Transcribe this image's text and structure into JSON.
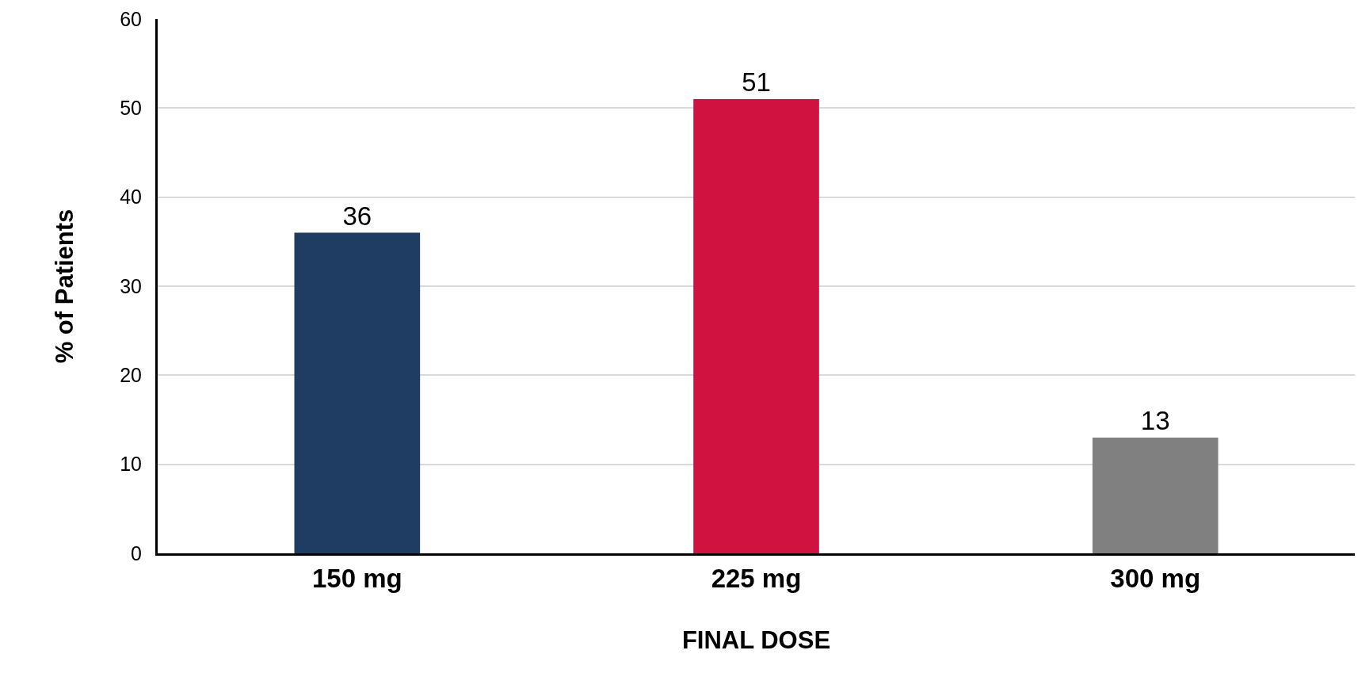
{
  "chart_data": {
    "type": "bar",
    "xlabel": "FINAL DOSE",
    "ylabel": "% of Patients",
    "categories": [
      "150 mg",
      "225 mg",
      "300 mg"
    ],
    "values": [
      36,
      51,
      13
    ],
    "colors": [
      "#1f3c62",
      "#d01240",
      "#808080"
    ],
    "ylim": [
      0,
      60
    ],
    "yticks": [
      0,
      10,
      20,
      30,
      40,
      50,
      60
    ],
    "grid": "y",
    "data_labels": true,
    "legend": false
  }
}
